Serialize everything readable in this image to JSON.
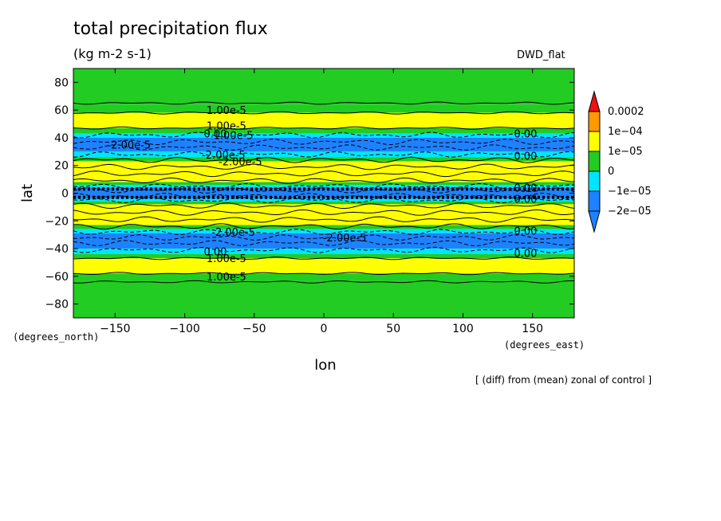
{
  "header": {
    "title": "total precipitation flux",
    "units": "(kg m-2 s-1)",
    "run_label": "DWD_flat",
    "note": "[ (diff) from (mean) zonal of control ]"
  },
  "colors": {
    "green": "#22cc22",
    "yellow": "#ffff00",
    "orange": "#ff9900",
    "red": "#ee1111",
    "cyan": "#00e5ff",
    "blue": "#1e82ff"
  },
  "chart_data": {
    "type": "heatmap",
    "title": "total precipitation flux",
    "subtitle": "(kg m-2 s-1)",
    "xlabel": "lon",
    "ylabel": "lat",
    "x_unit_label": "(degrees_east)",
    "y_unit_label": "(degrees_north)",
    "xlim": [
      -180,
      180
    ],
    "ylim": [
      -90,
      90
    ],
    "x_ticks": [
      -150,
      -100,
      -50,
      0,
      50,
      100,
      150
    ],
    "y_ticks": [
      -80,
      -60,
      -40,
      -20,
      0,
      20,
      40,
      60,
      80
    ],
    "legend": {
      "placement": "right",
      "tick_labels": [
        "0.0002",
        "1e-04",
        "1e-05",
        "0",
        "-1e-05",
        "-2e-05"
      ]
    },
    "bands": [
      {
        "lat_from": 64,
        "lat_to": 90,
        "color": "green"
      },
      {
        "lat_from": 58,
        "lat_to": 64,
        "color": "green"
      },
      {
        "lat_from": 47,
        "lat_to": 58,
        "color": "yellow"
      },
      {
        "lat_from": 43,
        "lat_to": 47,
        "color": "green"
      },
      {
        "lat_from": 40,
        "lat_to": 43,
        "color": "cyan"
      },
      {
        "lat_from": 30,
        "lat_to": 40,
        "color": "blue"
      },
      {
        "lat_from": 26,
        "lat_to": 30,
        "color": "cyan"
      },
      {
        "lat_from": 23,
        "lat_to": 26,
        "color": "green"
      },
      {
        "lat_from": 8,
        "lat_to": 23,
        "color": "yellow"
      },
      {
        "lat_from": 6,
        "lat_to": 8,
        "color": "green"
      },
      {
        "lat_from": 4,
        "lat_to": 6,
        "color": "cyan"
      },
      {
        "lat_from": -4,
        "lat_to": 4,
        "color": "blue"
      },
      {
        "lat_from": -6,
        "lat_to": -4,
        "color": "cyan"
      },
      {
        "lat_from": -8,
        "lat_to": -6,
        "color": "green"
      },
      {
        "lat_from": -23,
        "lat_to": -8,
        "color": "yellow"
      },
      {
        "lat_from": -26,
        "lat_to": -23,
        "color": "green"
      },
      {
        "lat_from": -29,
        "lat_to": -26,
        "color": "cyan"
      },
      {
        "lat_from": -40,
        "lat_to": -29,
        "color": "blue"
      },
      {
        "lat_from": -44,
        "lat_to": -40,
        "color": "cyan"
      },
      {
        "lat_from": -47,
        "lat_to": -44,
        "color": "green"
      },
      {
        "lat_from": -58,
        "lat_to": -47,
        "color": "yellow"
      },
      {
        "lat_from": -63,
        "lat_to": -58,
        "color": "green"
      },
      {
        "lat_from": -90,
        "lat_to": -63,
        "color": "green"
      }
    ],
    "contours": [
      {
        "lat": 65,
        "style": "solid"
      },
      {
        "lat": 58,
        "style": "solid"
      },
      {
        "lat": 47,
        "style": "solid"
      },
      {
        "lat": 42,
        "style": "dashed"
      },
      {
        "lat": 37,
        "style": "dashed"
      },
      {
        "lat": 33,
        "style": "dashed"
      },
      {
        "lat": 28,
        "style": "dashed"
      },
      {
        "lat": 24,
        "style": "solid"
      },
      {
        "lat": 19,
        "style": "solid"
      },
      {
        "lat": 14,
        "style": "solid"
      },
      {
        "lat": 9,
        "style": "solid"
      },
      {
        "lat": 5,
        "style": "dashed"
      },
      {
        "lat": 2,
        "style": "dashed"
      },
      {
        "lat": -2,
        "style": "dashed"
      },
      {
        "lat": -5,
        "style": "dashed"
      },
      {
        "lat": -9,
        "style": "solid"
      },
      {
        "lat": -14,
        "style": "solid"
      },
      {
        "lat": -19,
        "style": "solid"
      },
      {
        "lat": -24,
        "style": "solid"
      },
      {
        "lat": -28,
        "style": "dashed"
      },
      {
        "lat": -32,
        "style": "dashed"
      },
      {
        "lat": -36,
        "style": "dashed"
      },
      {
        "lat": -41,
        "style": "dashed"
      },
      {
        "lat": -47,
        "style": "solid"
      },
      {
        "lat": -58,
        "style": "solid"
      },
      {
        "lat": -64,
        "style": "solid"
      }
    ],
    "annotations": [
      {
        "text": "1.00e-5",
        "lon": -70,
        "lat": 60
      },
      {
        "text": "1.00e-5",
        "lon": -70,
        "lat": 49
      },
      {
        "text": "0.00",
        "lon": -78,
        "lat": 43
      },
      {
        "text": "1.00e-5",
        "lon": -65,
        "lat": 42
      },
      {
        "text": "-2.00e-5",
        "lon": -140,
        "lat": 35
      },
      {
        "text": "0.00",
        "lon": 145,
        "lat": 43
      },
      {
        "text": "0.00",
        "lon": 145,
        "lat": 27
      },
      {
        "text": "-2.00e-5",
        "lon": -72,
        "lat": 28
      },
      {
        "text": "-2.00e-5",
        "lon": -60,
        "lat": 23
      },
      {
        "text": "0.00",
        "lon": 145,
        "lat": 4
      },
      {
        "text": "0.00",
        "lon": 145,
        "lat": -4
      },
      {
        "text": "0.00",
        "lon": 145,
        "lat": -27
      },
      {
        "text": "-2.00e-5",
        "lon": 15,
        "lat": -32
      },
      {
        "text": "-2.00e-5",
        "lon": -65,
        "lat": -28
      },
      {
        "text": "0.00",
        "lon": -78,
        "lat": -42
      },
      {
        "text": "1.00e-5",
        "lon": -70,
        "lat": -47
      },
      {
        "text": "1.00e-5",
        "lon": -70,
        "lat": -60
      },
      {
        "text": "0.00",
        "lon": 145,
        "lat": -43
      }
    ]
  }
}
